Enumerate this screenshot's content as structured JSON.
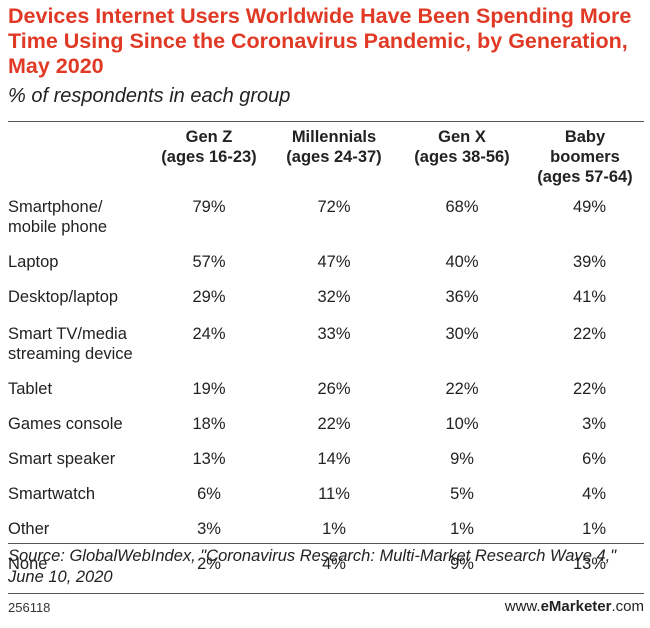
{
  "title": "Devices Internet Users Worldwide Have Been Spending More Time Using Since the Coronavirus Pandemic, by Generation, May 2020",
  "subtitle": "% of respondents in each group",
  "source": "Source: GlobalWebIndex, \"Coronavirus Research: Multi-Market Research Wave 4,\" June 10, 2020",
  "chart_id": "256118",
  "brand": {
    "prefix": "www.",
    "name": "eMarketer",
    "suffix": ".com"
  },
  "colors": {
    "title": "#e03a26"
  },
  "chart_data": {
    "type": "table",
    "title": "Devices Internet Users Worldwide Have Been Spending More Time Using Since the Coronavirus Pandemic, by Generation, May 2020",
    "subtitle": "% of respondents in each group",
    "columns": [
      {
        "line1": "Gen Z",
        "line2": "(ages 16-23)"
      },
      {
        "line1": "Millennials",
        "line2": "(ages 24-37)"
      },
      {
        "line1": "Gen X",
        "line2": "(ages 38-56)"
      },
      {
        "line1": "Baby",
        "line2": "boomers",
        "line3": "(ages 57-64)"
      }
    ],
    "rows": [
      {
        "label1": "Smartphone/",
        "label2": "mobile phone",
        "values": [
          "79%",
          "72%",
          "68%",
          "49%"
        ]
      },
      {
        "label1": "Laptop",
        "values": [
          "57%",
          "47%",
          "40%",
          "39%"
        ]
      },
      {
        "label1": "Desktop/laptop",
        "values": [
          "29%",
          "32%",
          "36%",
          "41%"
        ]
      },
      {
        "label1": "Smart TV/media",
        "label2": "streaming device",
        "values": [
          "24%",
          "33%",
          "30%",
          "22%"
        ]
      },
      {
        "label1": "Tablet",
        "values": [
          "19%",
          "26%",
          "22%",
          "22%"
        ]
      },
      {
        "label1": "Games console",
        "values": [
          "18%",
          "22%",
          "10%",
          "3%"
        ]
      },
      {
        "label1": "Smart speaker",
        "values": [
          "13%",
          "14%",
          "9%",
          "6%"
        ]
      },
      {
        "label1": "Smartwatch",
        "values": [
          "6%",
          "11%",
          "5%",
          "4%"
        ]
      },
      {
        "label1": "Other",
        "values": [
          "3%",
          "1%",
          "1%",
          "1%"
        ]
      },
      {
        "label1": "None",
        "values": [
          "2%",
          "4%",
          "9%",
          "13%"
        ]
      }
    ]
  }
}
